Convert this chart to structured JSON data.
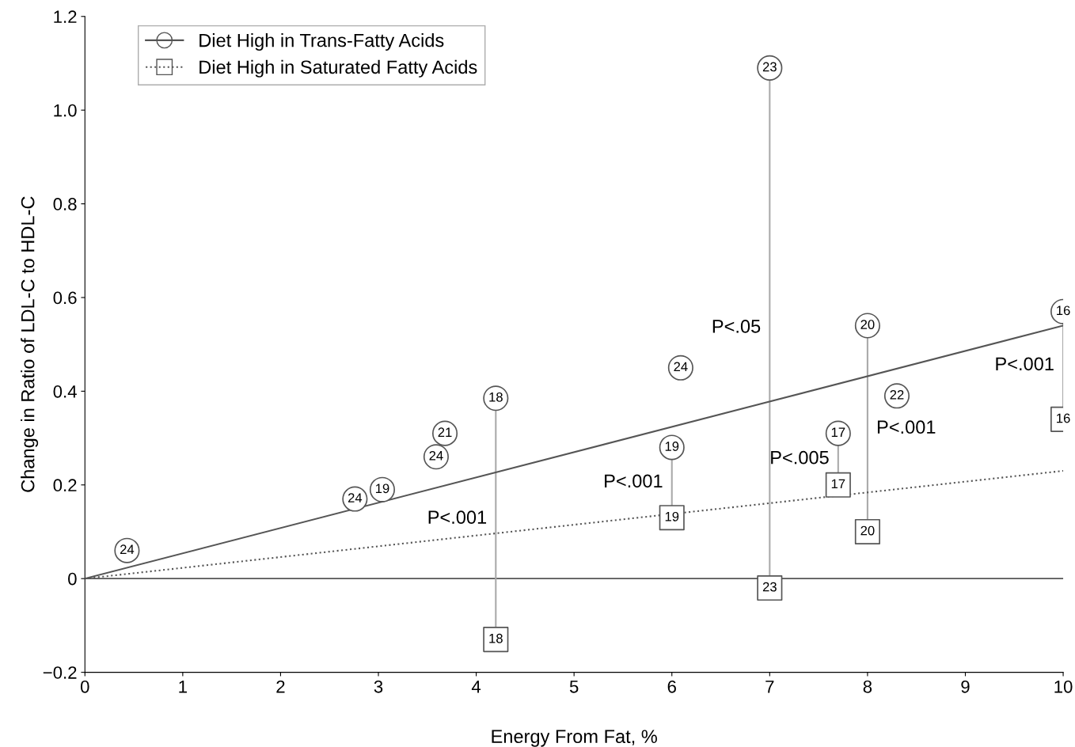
{
  "chart_data": {
    "type": "scatter",
    "xlabel": "Energy From Fat, %",
    "ylabel": "Change in Ratio of LDL-C to HDL-C",
    "xlim": [
      0,
      10
    ],
    "ylim": [
      -0.2,
      1.2
    ],
    "xticks": [
      0,
      1,
      2,
      3,
      4,
      5,
      6,
      7,
      8,
      9,
      10
    ],
    "yticks": [
      {
        "value": -0.2,
        "label": "−0.2"
      },
      {
        "value": 0,
        "label": "0"
      },
      {
        "value": 0.2,
        "label": "0.2"
      },
      {
        "value": 0.4,
        "label": "0.4"
      },
      {
        "value": 0.6,
        "label": "0.6"
      },
      {
        "value": 0.8,
        "label": "0.8"
      },
      {
        "value": 1.0,
        "label": "1.0"
      },
      {
        "value": 1.2,
        "label": "1.2"
      }
    ],
    "grid": false,
    "legend": "top left",
    "series": [
      {
        "name": "Diet High in Trans-Fatty Acids",
        "marker": "circle",
        "color": "#555555",
        "x": [
          0.43,
          2.76,
          3.04,
          3.59,
          3.68,
          4.2,
          6.0,
          6.09,
          7.0,
          7.7,
          8.0,
          8.3,
          10
        ],
        "values": [
          0.06,
          0.17,
          0.19,
          0.26,
          0.31,
          0.385,
          0.28,
          0.45,
          1.09,
          0.31,
          0.54,
          0.39,
          0.57
        ]
      },
      {
        "type": "line",
        "line_style": "solid",
        "color": "#555555",
        "x": [
          0,
          10
        ],
        "values": [
          0,
          0.54
        ]
      },
      {
        "name": "Diet High in Saturated Fatty Acids",
        "marker": "square",
        "color": "#555555",
        "x": [
          4.2,
          6.0,
          7.0,
          7.7,
          8.0,
          10
        ],
        "values": [
          -0.13,
          0.13,
          -0.02,
          0.2,
          0.1,
          0.34
        ]
      },
      {
        "type": "line",
        "line_style": "dotted",
        "color": "#555555",
        "x": [
          0,
          10
        ],
        "values": [
          0,
          0.23
        ]
      }
    ],
    "ref_lines": [
      {
        "axis": "y",
        "value": 0,
        "color": "#555555",
        "line_style": "solid"
      }
    ],
    "annotations": [
      {
        "text": "24",
        "x": 0.43,
        "y": 0.06
      },
      {
        "text": "24",
        "x": 2.76,
        "y": 0.17
      },
      {
        "text": "19",
        "x": 3.04,
        "y": 0.19
      },
      {
        "text": "24",
        "x": 3.59,
        "y": 0.26
      },
      {
        "text": "21",
        "x": 3.68,
        "y": 0.31
      },
      {
        "text": "18",
        "x": 4.2,
        "y": 0.385
      },
      {
        "text": "19",
        "x": 6.0,
        "y": 0.28
      },
      {
        "text": "24",
        "x": 6.09,
        "y": 0.45
      },
      {
        "text": "23",
        "x": 7.0,
        "y": 1.09
      },
      {
        "text": "17",
        "x": 7.7,
        "y": 0.31
      },
      {
        "text": "20",
        "x": 8.0,
        "y": 0.54
      },
      {
        "text": "22",
        "x": 8.3,
        "y": 0.39
      },
      {
        "text": "16",
        "x": 10,
        "y": 0.57
      },
      {
        "text": "18",
        "x": 4.2,
        "y": -0.13
      },
      {
        "text": "19",
        "x": 6.0,
        "y": 0.13
      },
      {
        "text": "23",
        "x": 7.0,
        "y": -0.02
      },
      {
        "text": "17",
        "x": 7.7,
        "y": 0.2
      },
      {
        "text": "20",
        "x": 8.0,
        "y": 0.1
      },
      {
        "text": "16",
        "x": 10,
        "y": 0.34
      },
      "P<.001",
      "P<.001",
      "P<.05",
      "P<.005",
      "P<.001",
      "P<.001"
    ]
  }
}
